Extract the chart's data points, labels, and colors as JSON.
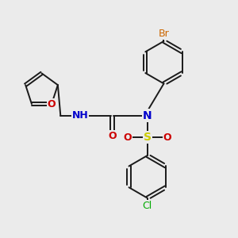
{
  "background_color": "#ebebeb",
  "bond_color": "#1a1a1a",
  "bond_width": 1.4,
  "atom_colors": {
    "Br": "#cc6600",
    "O": "#cc0000",
    "N": "#0000cc",
    "H_color": "#888888",
    "S": "#cccc00",
    "Cl": "#00aa00"
  },
  "figsize": [
    3.0,
    3.0
  ],
  "dpi": 100
}
